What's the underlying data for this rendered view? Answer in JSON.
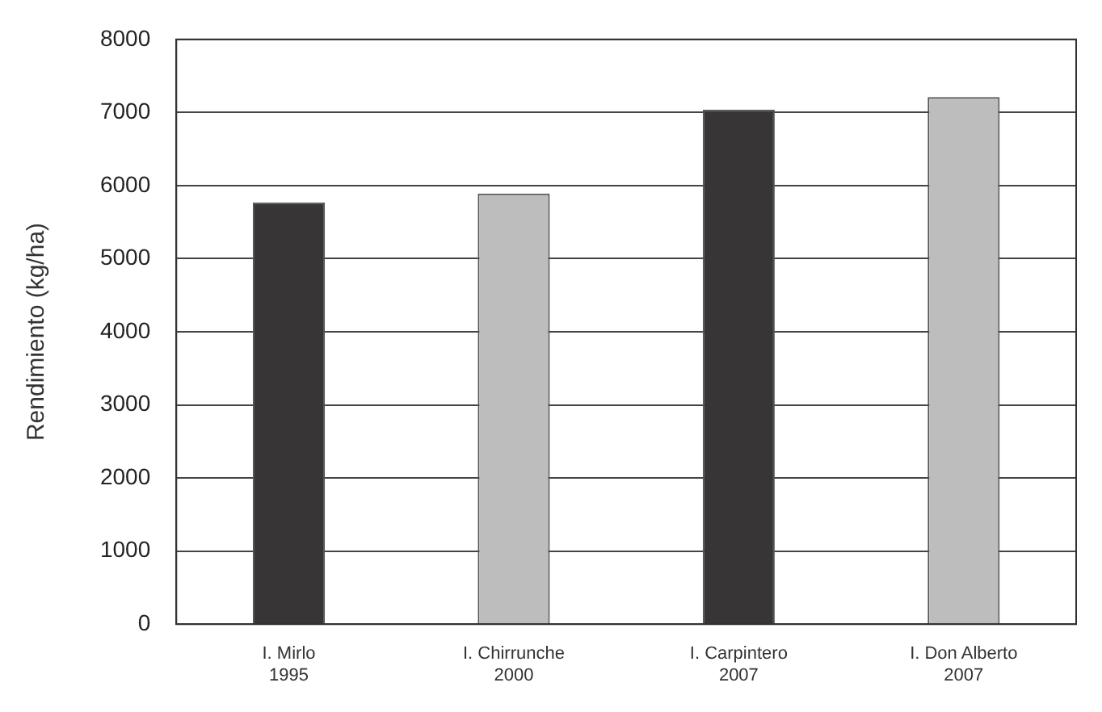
{
  "chart_data": {
    "type": "bar",
    "ylabel": "Rendimiento (kg/ha)",
    "categories": [
      "I. Mirlo\n1995",
      "I. Chirrunche\n2000",
      "I. Carpintero\n2007",
      "I. Don Alberto\n2007"
    ],
    "values": [
      5770,
      5890,
      7040,
      7210
    ],
    "colors": [
      "#373536",
      "#bdbdbd",
      "#373536",
      "#bdbdbd"
    ],
    "ylim": [
      0,
      8000
    ],
    "yticks": [
      0,
      1000,
      2000,
      3000,
      4000,
      5000,
      6000,
      7000,
      8000
    ],
    "grid": "y"
  }
}
